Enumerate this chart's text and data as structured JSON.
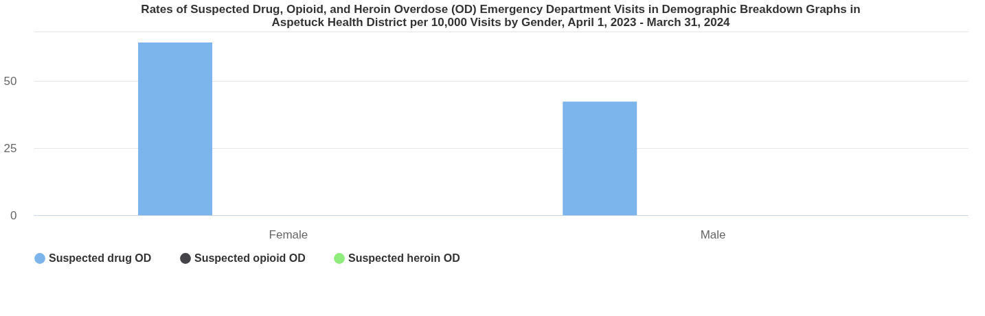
{
  "chart_data": {
    "type": "bar",
    "title": "Rates of Suspected Drug, Opioid, and Heroin Overdose (OD) Emergency Department Visits in Demographic Breakdown Graphs in\nAspetuck Health District per 10,000 Visits by Gender, April 1, 2023 - March 31, 2024",
    "categories": [
      "Female",
      "Male"
    ],
    "series": [
      {
        "name": "Suspected drug OD",
        "color": "#7cb5ec",
        "values": [
          64.3,
          42.3
        ]
      },
      {
        "name": "Suspected opioid OD",
        "color": "#434348",
        "values": [
          0,
          0
        ]
      },
      {
        "name": "Suspected heroin OD",
        "color": "#90ed7d",
        "values": [
          0,
          0
        ]
      }
    ],
    "ylim": [
      0,
      68.4
    ],
    "yticks": [
      0,
      25,
      50,
      {
        "value": 68.4,
        "label": null
      }
    ],
    "grid": "y",
    "legend": "bottom"
  }
}
